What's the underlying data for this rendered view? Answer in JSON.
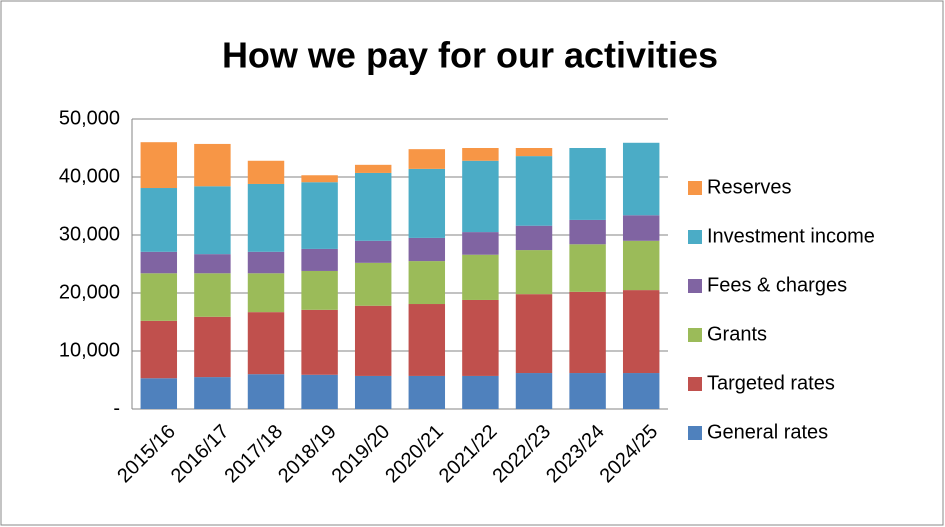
{
  "chart_data": {
    "type": "stacked-bar",
    "title": "How we pay for our activities",
    "categories": [
      "2015/16",
      "2016/17",
      "2017/18",
      "2018/19",
      "2019/20",
      "2020/21",
      "2021/22",
      "2022/23",
      "2023/24",
      "2024/25"
    ],
    "series": [
      {
        "name": "General rates",
        "color": "#4f81bd",
        "values": [
          5300,
          5500,
          6000,
          5900,
          5700,
          5700,
          5700,
          6200,
          6200,
          6200
        ]
      },
      {
        "name": "Targeted rates",
        "color": "#c0504d",
        "values": [
          9900,
          10400,
          10700,
          11200,
          12100,
          12400,
          13100,
          13600,
          14000,
          14300
        ]
      },
      {
        "name": "Grants",
        "color": "#9bbb59",
        "values": [
          8200,
          7500,
          6700,
          6700,
          7400,
          7400,
          7800,
          7600,
          8200,
          8500
        ]
      },
      {
        "name": "Fees & charges",
        "color": "#8064a2",
        "values": [
          3700,
          3300,
          3700,
          3800,
          3800,
          4000,
          3900,
          4200,
          4200,
          4400
        ]
      },
      {
        "name": "Investment income",
        "color": "#4bacc6",
        "values": [
          11000,
          11700,
          11700,
          11500,
          11700,
          11900,
          12300,
          12000,
          12400,
          12500
        ]
      },
      {
        "name": "Reserves",
        "color": "#f79646",
        "values": [
          7900,
          7300,
          4000,
          1200,
          1400,
          3400,
          2200,
          1400,
          0,
          0
        ]
      }
    ],
    "ylim": [
      0,
      50000
    ],
    "yticks": [
      {
        "value": 0,
        "label": "-"
      },
      {
        "value": 10000,
        "label": "10,000"
      },
      {
        "value": 20000,
        "label": "20,000"
      },
      {
        "value": 30000,
        "label": "30,000"
      },
      {
        "value": 40000,
        "label": "40,000"
      },
      {
        "value": 50000,
        "label": "50,000"
      }
    ],
    "grid": true,
    "legend": "right"
  }
}
